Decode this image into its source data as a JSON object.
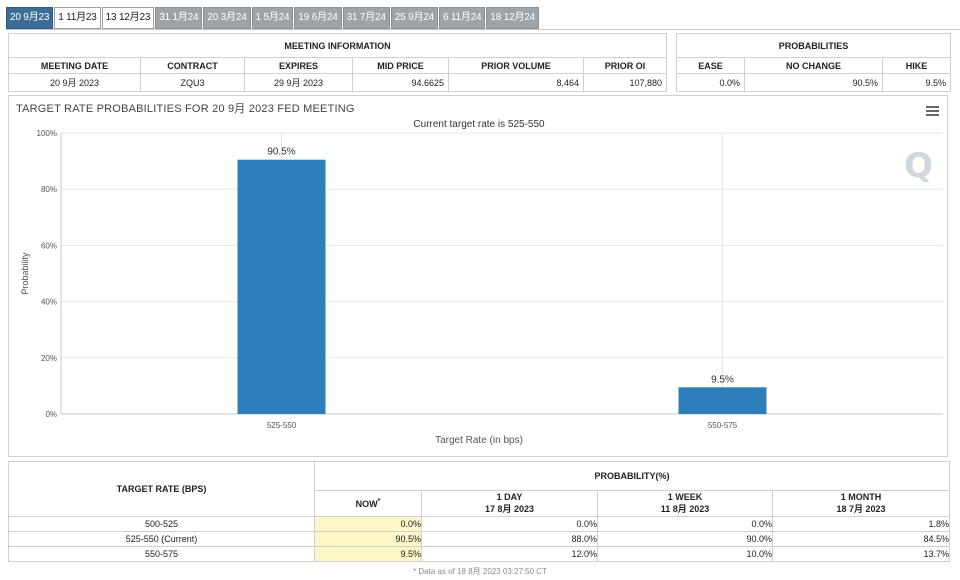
{
  "tabs": [
    "20 9月23",
    "1 11月23",
    "13 12月23",
    "31 1月24",
    "20 3月24",
    "1 5月24",
    "19 6月24",
    "31 7月24",
    "25 9月24",
    "6 11月24",
    "18 12月24"
  ],
  "meeting_info": {
    "header": "MEETING INFORMATION",
    "columns": [
      "MEETING DATE",
      "CONTRACT",
      "EXPIRES",
      "MID PRICE",
      "PRIOR VOLUME",
      "PRIOR OI"
    ],
    "values": [
      "20 9月 2023",
      "ZQU3",
      "29 9月 2023",
      "94.6625",
      "8,464",
      "107,880"
    ]
  },
  "probabilities": {
    "header": "PROBABILITIES",
    "columns": [
      "EASE",
      "NO CHANGE",
      "HIKE"
    ],
    "values": [
      "0.0%",
      "90.5%",
      "9.5%"
    ]
  },
  "chart_data": {
    "type": "bar",
    "title": "TARGET RATE PROBABILITIES FOR 20 9月 2023 FED MEETING",
    "subtitle": "Current target rate is 525-550",
    "xlabel": "Target Rate (in bps)",
    "ylabel": "Probability",
    "categories": [
      "525-550",
      "550-575"
    ],
    "values": [
      90.5,
      9.5
    ],
    "data_labels": [
      "90.5%",
      "9.5%"
    ],
    "ylim": [
      0,
      100
    ],
    "yticks": [
      "0%",
      "20%",
      "40%",
      "60%",
      "80%",
      "100%"
    ],
    "bar_color": "#2f7ebc",
    "grid": true,
    "legend": "none"
  },
  "brand": {
    "logo_text": "Q"
  },
  "prob_table": {
    "col_target": "TARGET RATE (BPS)",
    "col_prob": "PROBABILITY(%)",
    "sub": [
      {
        "l1": "NOW",
        "l2": "",
        "star": "*"
      },
      {
        "l1": "1 DAY",
        "l2": "17 8月 2023"
      },
      {
        "l1": "1 WEEK",
        "l2": "11 8月 2023"
      },
      {
        "l1": "1 MONTH",
        "l2": "18 7月 2023"
      }
    ],
    "rows": [
      {
        "rate": "500-525",
        "vals": [
          "0.0%",
          "0.0%",
          "0.0%",
          "1.8%"
        ]
      },
      {
        "rate": "525-550 (Current)",
        "vals": [
          "90.5%",
          "88.0%",
          "90.0%",
          "84.5%"
        ]
      },
      {
        "rate": "550-575",
        "vals": [
          "9.5%",
          "12.0%",
          "10.0%",
          "13.7%"
        ]
      }
    ],
    "footnote": "* Data as of 18 8月 2023 03:27:50 CT"
  }
}
